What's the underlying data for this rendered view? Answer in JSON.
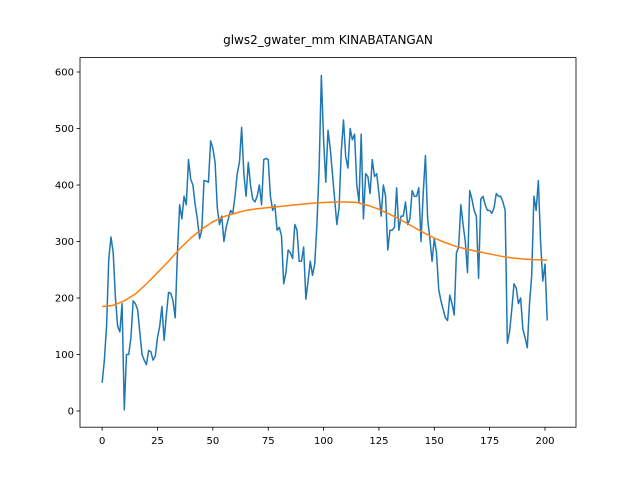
{
  "chart_data": {
    "type": "line",
    "title": "glws2_gwater_mm KINABATANGAN",
    "xlim": [
      -10,
      214
    ],
    "xticks": [
      0,
      25,
      50,
      75,
      100,
      125,
      150,
      175,
      200
    ],
    "ylim": [
      -28.7,
      625.5
    ],
    "yticks": [
      0,
      100,
      200,
      300,
      400,
      500,
      600
    ],
    "grid": false,
    "series": [
      {
        "color": "#1f77b4",
        "values": [
          50,
          90,
          150,
          270,
          308,
          280,
          200,
          150,
          140,
          190,
          2,
          100,
          100,
          130,
          195,
          190,
          180,
          140,
          100,
          90,
          82,
          107,
          105,
          90,
          97,
          130,
          150,
          185,
          125,
          170,
          210,
          208,
          195,
          165,
          280,
          365,
          340,
          380,
          365,
          445,
          410,
          400,
          365,
          340,
          305,
          320,
          408,
          407,
          405,
          478,
          465,
          440,
          360,
          330,
          345,
          300,
          325,
          340,
          355,
          350,
          380,
          420,
          440,
          502,
          420,
          380,
          440,
          400,
          375,
          370,
          380,
          400,
          365,
          445,
          447,
          445,
          380,
          355,
          365,
          320,
          325,
          310,
          225,
          245,
          285,
          280,
          270,
          330,
          320,
          265,
          265,
          290,
          198,
          230,
          265,
          240,
          260,
          330,
          430,
          594,
          480,
          405,
          497,
          465,
          420,
          375,
          330,
          360,
          460,
          515,
          450,
          430,
          500,
          480,
          490,
          400,
          370,
          490,
          340,
          420,
          415,
          385,
          445,
          415,
          420,
          385,
          345,
          400,
          380,
          285,
          320,
          320,
          325,
          395,
          320,
          345,
          345,
          370,
          330,
          340,
          390,
          380,
          380,
          395,
          300,
          385,
          452,
          340,
          305,
          265,
          305,
          280,
          215,
          195,
          180,
          165,
          160,
          205,
          190,
          170,
          280,
          290,
          365,
          330,
          300,
          245,
          390,
          375,
          355,
          345,
          235,
          375,
          380,
          365,
          355,
          355,
          350,
          360,
          385,
          380,
          380,
          370,
          355,
          120,
          140,
          180,
          225,
          218,
          190,
          200,
          145,
          130,
          112,
          190,
          240,
          380,
          355,
          408,
          300,
          230,
          260,
          160
        ]
      },
      {
        "color": "#ff7f0e",
        "x": [
          0,
          5,
          10,
          15,
          20,
          25,
          30,
          35,
          40,
          45,
          50,
          55,
          60,
          65,
          70,
          75,
          80,
          85,
          90,
          95,
          100,
          105,
          110,
          115,
          120,
          125,
          130,
          135,
          140,
          145,
          150,
          155,
          160,
          165,
          170,
          175,
          180,
          185,
          190,
          195,
          200,
          201
        ],
        "values": [
          185,
          187,
          195,
          207,
          225,
          245,
          265,
          287,
          306,
          322,
          335,
          344,
          350,
          355,
          358,
          360,
          362,
          364,
          366,
          368,
          369,
          370,
          370,
          369,
          364,
          357,
          348,
          338,
          327,
          316,
          306,
          298,
          291,
          286,
          282,
          278,
          274,
          271,
          269,
          268,
          267,
          267
        ]
      }
    ]
  }
}
